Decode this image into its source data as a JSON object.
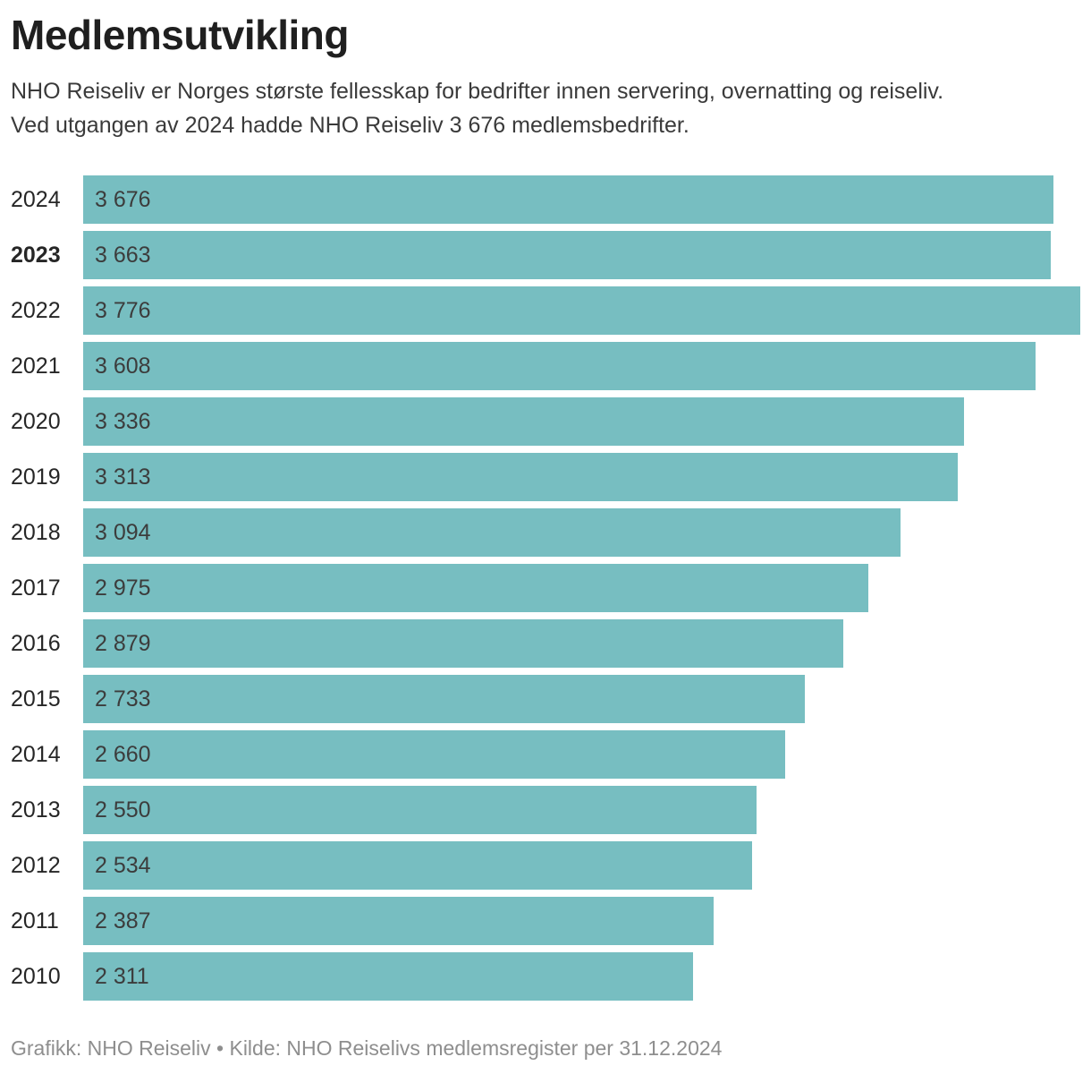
{
  "header": {
    "title": "Medlemsutvikling",
    "subtitle_line1": "NHO Reiseliv er Norges største fellesskap for bedrifter innen servering, overnatting og reiseliv.",
    "subtitle_line2": "Ved utgangen av 2024 hadde NHO Reiseliv 3 676 medlemsbedrifter."
  },
  "colors": {
    "bar": "#77bec1",
    "title_text": "#1f1f1f",
    "body_text": "#3a3a3a",
    "value_text": "#3c3c3c",
    "footer_text": "#8e8e8e",
    "background": "#ffffff"
  },
  "chart_data": {
    "type": "bar",
    "orientation": "horizontal",
    "title": "Medlemsutvikling",
    "categories": [
      "2024",
      "2023",
      "2022",
      "2021",
      "2020",
      "2019",
      "2018",
      "2017",
      "2016",
      "2015",
      "2014",
      "2013",
      "2012",
      "2011",
      "2010"
    ],
    "values": [
      3676,
      3663,
      3776,
      3608,
      3336,
      3313,
      3094,
      2975,
      2879,
      2733,
      2660,
      2550,
      2534,
      2387,
      2311
    ],
    "value_labels": [
      "3 676",
      "3 663",
      "3 776",
      "3 608",
      "3 336",
      "3 313",
      "3 094",
      "2 975",
      "2 879",
      "2 733",
      "2 660",
      "2 550",
      "2 534",
      "2 387",
      "2 311"
    ],
    "xlim": [
      0,
      3776
    ],
    "emphasized_category": "2023",
    "grid": false,
    "legend": false,
    "value_labels_position": "inside-left"
  },
  "footer": {
    "credit": "Grafikk: NHO Reiseliv • Kilde: NHO Reiselivs medlemsregister per 31.12.2024"
  }
}
